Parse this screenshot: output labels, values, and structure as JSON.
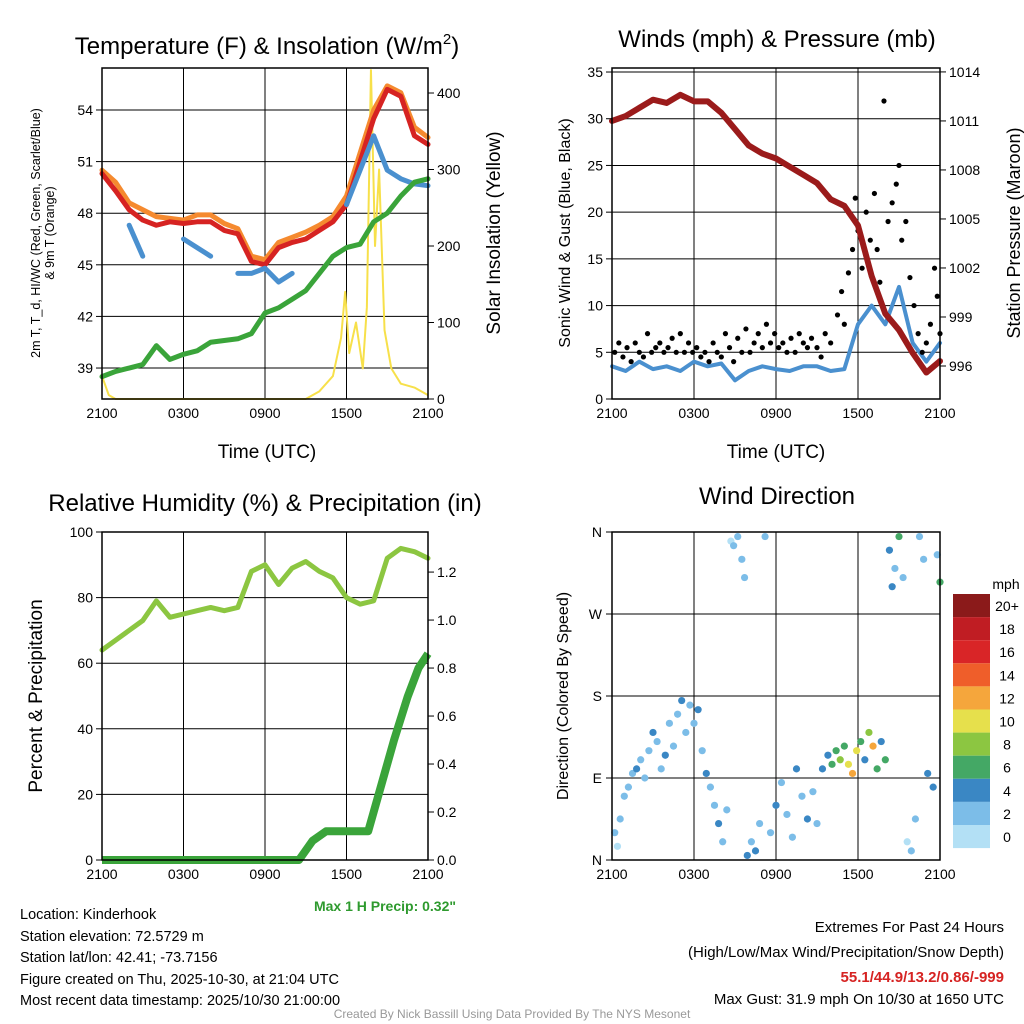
{
  "x_ticks": [
    "2100",
    "0300",
    "0900",
    "1500",
    "2100"
  ],
  "chart_data": [
    {
      "type": "line",
      "title": "Temperature (F) & Insolation (W/m²)",
      "title_main": "Temperature (F) & Insolation (W/m",
      "title_sup": "2",
      "title_end": ")",
      "xlabel": "Time (UTC)",
      "ylabel_line1": "2m T, T_d, HI/WC (Red, Green, Scarlet/Blue)",
      "ylabel_line2": "& 9m T (Orange)",
      "y2label": "Solar Insolation (Yellow)",
      "ylim": [
        37.2,
        56.44
      ],
      "y_ticks": [
        39,
        42,
        45,
        48,
        51,
        54
      ],
      "y2lim": [
        0,
        432.7
      ],
      "y2_ticks": [
        0,
        100,
        200,
        300,
        400
      ],
      "series": [
        {
          "name": "9m T",
          "color": "#f58a2f",
          "values": [
            50.5,
            49.8,
            48.6,
            48.2,
            47.8,
            47.7,
            47.6,
            47.9,
            47.9,
            47.4,
            47.1,
            45.5,
            45.3,
            46.3,
            46.6,
            46.9,
            47.3,
            47.8,
            49,
            51.5,
            54,
            55.4,
            55,
            53,
            52.4
          ]
        },
        {
          "name": "2m T",
          "color": "#d62322",
          "values": [
            50.3,
            49.3,
            48.2,
            47.6,
            47.3,
            47.5,
            47.4,
            47.5,
            47.5,
            47.0,
            46.8,
            45.2,
            45.0,
            46.0,
            46.3,
            46.5,
            47.0,
            47.5,
            48.5,
            51.0,
            53.5,
            55.2,
            54.8,
            52.5,
            52.0
          ]
        },
        {
          "name": "WC",
          "color": "#4a90cf",
          "values": [
            null,
            null,
            47.3,
            45.5,
            null,
            null,
            46.5,
            46.0,
            45.5,
            null,
            44.5,
            44.5,
            44.8,
            44.0,
            44.5,
            null,
            null,
            null,
            48.5,
            50.5,
            52.5,
            50.5,
            50.0,
            49.7,
            49.6
          ]
        },
        {
          "name": "Td",
          "color": "#3aa43a",
          "values": [
            38.5,
            38.8,
            39.0,
            39.2,
            40.3,
            39.5,
            39.8,
            40.0,
            40.5,
            40.6,
            40.7,
            41.0,
            42.2,
            42.5,
            43.0,
            43.5,
            44.5,
            45.5,
            46.0,
            46.2,
            47.5,
            48.0,
            49.0,
            49.8,
            50.0
          ]
        }
      ],
      "insolation": {
        "name": "Solar Insolation",
        "color": "#f7e04a",
        "points": [
          [
            0,
            30
          ],
          [
            0.5,
            5
          ],
          [
            1,
            0
          ],
          [
            15,
            0
          ],
          [
            16,
            10
          ],
          [
            17,
            30
          ],
          [
            17.6,
            80
          ],
          [
            17.9,
            140
          ],
          [
            18.2,
            60
          ],
          [
            18.7,
            100
          ],
          [
            19.2,
            40
          ],
          [
            19.5,
            120
          ],
          [
            19.8,
            430
          ],
          [
            20.1,
            200
          ],
          [
            20.4,
            300
          ],
          [
            20.8,
            90
          ],
          [
            21.3,
            40
          ],
          [
            22,
            20
          ],
          [
            23,
            15
          ],
          [
            24,
            5
          ]
        ]
      }
    },
    {
      "type": "line",
      "title": "Winds (mph) & Pressure (mb)",
      "xlabel": "Time (UTC)",
      "ylabel": "Sonic Wind & Gust (Blue, Black)",
      "y2label": "Station Pressure (Maroon)",
      "ylim": [
        0,
        35.43
      ],
      "y_ticks": [
        0,
        5,
        10,
        15,
        20,
        25,
        30,
        35
      ],
      "y2lim": [
        993.98,
        1014.24
      ],
      "y2_ticks": [
        996,
        999,
        1002,
        1005,
        1008,
        1011,
        1014
      ],
      "wind": {
        "color": "#4a90cf",
        "values": [
          3.5,
          3,
          4,
          3.2,
          3.5,
          3,
          4,
          3.5,
          3.8,
          2,
          3,
          3.5,
          3.2,
          3,
          3.5,
          3.5,
          3,
          3.2,
          8,
          10,
          8,
          12,
          6,
          4,
          6
        ]
      },
      "pressure": {
        "color": "#9b1b1b",
        "values": [
          1011,
          1011.3,
          1011.8,
          1012.3,
          1012.1,
          1012.6,
          1012.2,
          1012.2,
          1011.5,
          1010.5,
          1009.5,
          1009,
          1008.7,
          1008.2,
          1007.7,
          1007.2,
          1006.2,
          1005.8,
          1004.6,
          1001.5,
          999.2,
          998.2,
          996.8,
          995.6,
          996.3
        ]
      },
      "gust": {
        "color": "#000000",
        "points": [
          [
            0.2,
            5
          ],
          [
            0.5,
            6
          ],
          [
            0.8,
            4.5
          ],
          [
            1.1,
            5.5
          ],
          [
            1.4,
            4
          ],
          [
            1.7,
            6
          ],
          [
            2,
            5
          ],
          [
            2.3,
            4.5
          ],
          [
            2.6,
            7
          ],
          [
            2.9,
            5
          ],
          [
            3.2,
            5.5
          ],
          [
            3.5,
            6
          ],
          [
            3.8,
            5
          ],
          [
            4.1,
            5.5
          ],
          [
            4.4,
            6.5
          ],
          [
            4.7,
            5
          ],
          [
            5,
            7
          ],
          [
            5.3,
            5
          ],
          [
            5.6,
            6
          ],
          [
            5.9,
            5
          ],
          [
            6.2,
            5.5
          ],
          [
            6.5,
            4.5
          ],
          [
            6.8,
            5
          ],
          [
            7.1,
            4
          ],
          [
            7.4,
            6
          ],
          [
            7.7,
            5
          ],
          [
            8,
            4.5
          ],
          [
            8.3,
            7
          ],
          [
            8.6,
            5.5
          ],
          [
            8.9,
            4
          ],
          [
            9.2,
            6.5
          ],
          [
            9.5,
            5
          ],
          [
            9.8,
            7.5
          ],
          [
            10.1,
            5
          ],
          [
            10.4,
            6
          ],
          [
            10.7,
            7
          ],
          [
            11,
            5.5
          ],
          [
            11.3,
            8
          ],
          [
            11.6,
            6
          ],
          [
            11.9,
            7
          ],
          [
            12.2,
            5.5
          ],
          [
            12.5,
            6
          ],
          [
            12.8,
            5
          ],
          [
            13.1,
            6.5
          ],
          [
            13.4,
            5
          ],
          [
            13.7,
            7
          ],
          [
            14,
            6
          ],
          [
            14.3,
            5.5
          ],
          [
            14.6,
            6.5
          ],
          [
            15,
            5.5
          ],
          [
            15.3,
            4.5
          ],
          [
            15.6,
            7
          ],
          [
            16,
            6
          ],
          [
            16.5,
            9
          ],
          [
            16.8,
            11.5
          ],
          [
            17,
            8
          ],
          [
            17.3,
            13.5
          ],
          [
            17.6,
            16
          ],
          [
            17.8,
            21.5
          ],
          [
            18,
            18
          ],
          [
            18.3,
            14
          ],
          [
            18.6,
            20
          ],
          [
            18.9,
            17
          ],
          [
            19.2,
            22
          ],
          [
            19.4,
            16
          ],
          [
            19.6,
            12.5
          ],
          [
            19.9,
            31.9
          ],
          [
            20.2,
            19
          ],
          [
            20.5,
            21
          ],
          [
            20.8,
            23
          ],
          [
            21,
            25
          ],
          [
            21.2,
            17
          ],
          [
            21.5,
            19
          ],
          [
            21.8,
            13
          ],
          [
            22.1,
            10
          ],
          [
            22.4,
            7
          ],
          [
            22.7,
            5
          ],
          [
            23,
            6
          ],
          [
            23.3,
            8
          ],
          [
            23.6,
            14
          ],
          [
            23.8,
            11
          ],
          [
            24,
            7
          ]
        ]
      }
    },
    {
      "type": "line",
      "title": "Relative Humidity (%) & Precipitation (in)",
      "ylabel": "Percent & Precipitation",
      "ylim": [
        0,
        100
      ],
      "y_ticks": [
        0,
        20,
        40,
        60,
        80,
        100
      ],
      "y2lim": [
        0,
        1.367
      ],
      "y2_ticks": [
        "0.0",
        "0.2",
        "0.4",
        "0.6",
        "0.8",
        "1.0",
        "1.2"
      ],
      "rh": {
        "color": "#8cc641",
        "values": [
          64,
          67,
          70,
          73,
          79,
          74,
          75,
          76,
          77,
          76,
          77,
          88,
          90,
          84,
          89,
          91,
          88,
          86,
          80,
          78,
          79,
          92,
          95,
          94,
          92
        ]
      },
      "precip": {
        "color": "#3aa43a",
        "points": [
          [
            0,
            0
          ],
          [
            14.5,
            0
          ],
          [
            15.5,
            0.08
          ],
          [
            16.5,
            0.12
          ],
          [
            19.6,
            0.12
          ],
          [
            20.5,
            0.3
          ],
          [
            21.5,
            0.5
          ],
          [
            22.5,
            0.68
          ],
          [
            23.3,
            0.8
          ],
          [
            24,
            0.86
          ]
        ]
      },
      "annotation": "Max 1 H Precip: 0.32\""
    },
    {
      "type": "scatter",
      "title": "Wind Direction",
      "ylabel": "Direction (Colored By Speed)",
      "y_ticks": [
        "N",
        "E",
        "S",
        "W",
        "N"
      ],
      "ylim": [
        0,
        360
      ],
      "legend_title": "mph",
      "legend_labels": [
        "20+",
        "18",
        "16",
        "14",
        "12",
        "10",
        "8",
        "6",
        "4",
        "2",
        "0"
      ],
      "legend_colors": [
        "#8b1a1a",
        "#c01d23",
        "#d92527",
        "#ef5e2a",
        "#f5a63c",
        "#e6e04c",
        "#8cc641",
        "#44a865",
        "#3a87c4",
        "#7cbde8",
        "#b3e0f5"
      ],
      "points": [
        [
          0.2,
          30,
          2
        ],
        [
          0.4,
          15,
          1
        ],
        [
          0.6,
          45,
          3
        ],
        [
          0.9,
          70,
          2
        ],
        [
          1.2,
          80,
          3
        ],
        [
          1.5,
          95,
          2
        ],
        [
          1.8,
          100,
          4
        ],
        [
          2.1,
          110,
          3
        ],
        [
          2.4,
          90,
          2
        ],
        [
          2.7,
          120,
          3
        ],
        [
          3,
          140,
          4
        ],
        [
          3.3,
          130,
          2
        ],
        [
          3.6,
          100,
          3
        ],
        [
          3.9,
          115,
          4
        ],
        [
          4.2,
          150,
          3
        ],
        [
          4.5,
          125,
          2
        ],
        [
          4.8,
          160,
          3
        ],
        [
          5.1,
          175,
          4
        ],
        [
          5.4,
          140,
          3
        ],
        [
          5.7,
          170,
          2
        ],
        [
          6,
          150,
          3
        ],
        [
          6.3,
          165,
          4
        ],
        [
          6.6,
          120,
          3
        ],
        [
          6.9,
          95,
          4
        ],
        [
          7.2,
          80,
          3
        ],
        [
          7.5,
          60,
          2
        ],
        [
          7.8,
          40,
          4
        ],
        [
          8.1,
          20,
          3
        ],
        [
          8.4,
          55,
          2
        ],
        [
          8.7,
          350,
          1
        ],
        [
          8.9,
          345,
          2
        ],
        [
          9.2,
          355,
          3
        ],
        [
          9.5,
          330,
          2
        ],
        [
          9.7,
          310,
          3
        ],
        [
          9.9,
          5,
          4
        ],
        [
          10.2,
          20,
          3
        ],
        [
          10.5,
          10,
          4
        ],
        [
          10.8,
          40,
          3
        ],
        [
          11.2,
          355,
          2
        ],
        [
          11.6,
          30,
          3
        ],
        [
          12,
          60,
          4
        ],
        [
          12.4,
          85,
          3
        ],
        [
          12.8,
          50,
          2
        ],
        [
          13.2,
          25,
          3
        ],
        [
          13.5,
          100,
          4
        ],
        [
          13.9,
          70,
          3
        ],
        [
          14.3,
          45,
          4
        ],
        [
          14.7,
          75,
          3
        ],
        [
          15,
          40,
          2
        ],
        [
          15.4,
          100,
          4
        ],
        [
          15.8,
          115,
          5
        ],
        [
          16.1,
          105,
          6
        ],
        [
          16.4,
          120,
          7
        ],
        [
          16.7,
          110,
          8
        ],
        [
          17,
          125,
          6
        ],
        [
          17.3,
          105,
          10
        ],
        [
          17.6,
          95,
          12
        ],
        [
          17.9,
          120,
          11
        ],
        [
          18.2,
          130,
          6
        ],
        [
          18.5,
          110,
          4
        ],
        [
          18.8,
          140,
          9
        ],
        [
          19.1,
          125,
          12
        ],
        [
          19.4,
          100,
          7
        ],
        [
          19.7,
          130,
          5
        ],
        [
          20,
          110,
          6
        ],
        [
          20.3,
          340,
          4
        ],
        [
          20.5,
          300,
          5
        ],
        [
          20.7,
          320,
          3
        ],
        [
          21,
          355,
          6
        ],
        [
          21.3,
          310,
          2
        ],
        [
          21.6,
          20,
          1
        ],
        [
          21.9,
          10,
          2
        ],
        [
          22.2,
          45,
          3
        ],
        [
          22.5,
          355,
          2
        ],
        [
          22.8,
          330,
          3
        ],
        [
          23.1,
          95,
          5
        ],
        [
          23.5,
          80,
          4
        ],
        [
          23.8,
          335,
          3
        ],
        [
          24,
          305,
          6
        ]
      ]
    }
  ],
  "footer": {
    "location": "Location: Kinderhook",
    "elevation": "Station elevation: 72.5729 m",
    "latlon": "Station lat/lon: 42.41; -73.7156",
    "created": "Figure created on Thu, 2025-10-30, at 21:04 UTC",
    "timestamp": "Most recent data timestamp: 2025/10/30 21:00:00",
    "extremes_title": "Extremes For Past 24 Hours",
    "extremes_sub": "(High/Low/Max Wind/Precipitation/Snow Depth)",
    "extremes_values": "55.1/44.9/13.2/0.86/-999",
    "max_gust": "Max Gust: 31.9 mph On 10/30 at 1650 UTC",
    "credit": "Created By Nick Bassill Using Data Provided By The NYS Mesonet"
  }
}
